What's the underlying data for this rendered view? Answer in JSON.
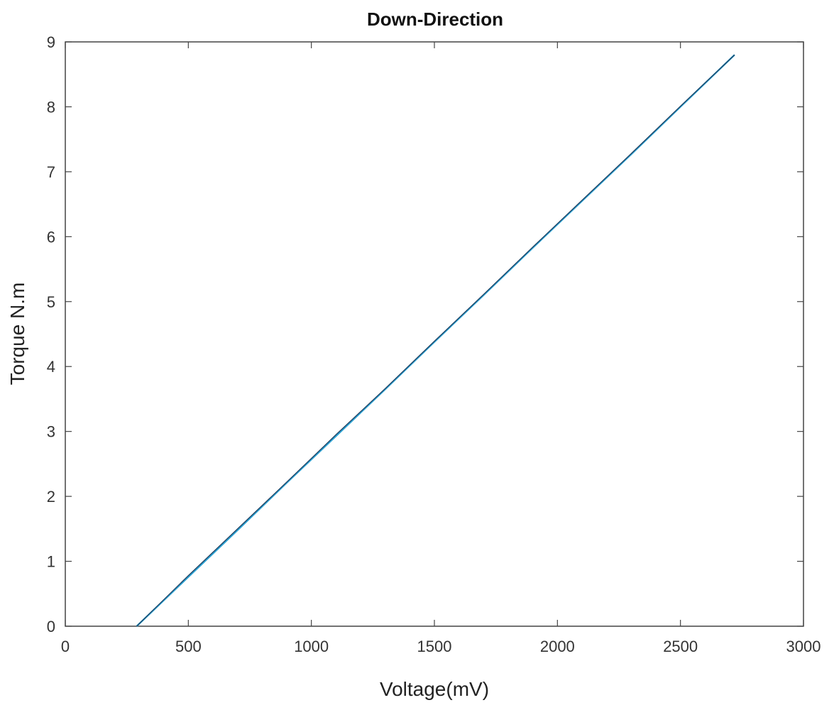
{
  "chart_data": {
    "type": "line",
    "title": "Down-Direction",
    "xlabel": "Voltage(mV)",
    "ylabel": "Torque N.m",
    "xlim": [
      0,
      3000
    ],
    "ylim": [
      0,
      9
    ],
    "xticks": [
      0,
      500,
      1000,
      1500,
      2000,
      2500,
      3000
    ],
    "yticks": [
      0,
      1,
      2,
      3,
      4,
      5,
      6,
      7,
      8,
      9
    ],
    "grid": false,
    "series": [
      {
        "color": "#2a9fd0",
        "x": [
          290,
          500,
          700,
          900,
          1100,
          1300,
          1500,
          1700,
          1900,
          2100,
          2300,
          2500,
          2720
        ],
        "y": [
          0.0,
          0.76,
          1.48,
          2.21,
          2.93,
          3.65,
          4.38,
          5.1,
          5.83,
          6.55,
          7.27,
          8.0,
          8.8
        ]
      },
      {
        "color": "#1f3c5c",
        "x": [
          290,
          500,
          700,
          900,
          1100,
          1300,
          1500,
          1700,
          1900,
          2100,
          2300,
          2500,
          2720
        ],
        "y": [
          0.0,
          0.78,
          1.5,
          2.22,
          2.95,
          3.66,
          4.39,
          5.11,
          5.84,
          6.56,
          7.28,
          8.01,
          8.8
        ]
      }
    ]
  }
}
